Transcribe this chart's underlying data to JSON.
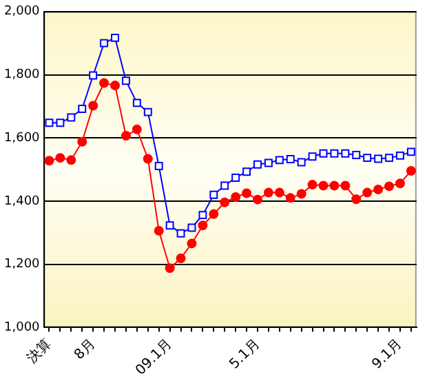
{
  "chart_data": {
    "type": "line",
    "categories": [
      "決算",
      null,
      null,
      null,
      "8月",
      null,
      null,
      null,
      null,
      null,
      null,
      "09.1月",
      null,
      null,
      null,
      null,
      null,
      null,
      null,
      "5.1月",
      null,
      null,
      null,
      null,
      null,
      null,
      null,
      null,
      null,
      null,
      null,
      null,
      "9.1月",
      null
    ],
    "series": [
      {
        "color": "#0000ff",
        "marker": "square",
        "values": [
          1648,
          1648,
          1665,
          1692,
          1798,
          1900,
          1917,
          1781,
          1711,
          1682,
          1511,
          1323,
          1298,
          1316,
          1356,
          1420,
          1449,
          1474,
          1493,
          1516,
          1521,
          1530,
          1533,
          1523,
          1541,
          1551,
          1551,
          1551,
          1546,
          1537,
          1534,
          1537,
          1544,
          1556
        ]
      },
      {
        "color": "#ff0000",
        "marker": "circle",
        "values": [
          1528,
          1537,
          1530,
          1588,
          1702,
          1774,
          1766,
          1607,
          1627,
          1534,
          1306,
          1188,
          1219,
          1266,
          1323,
          1359,
          1396,
          1413,
          1425,
          1405,
          1427,
          1427,
          1410,
          1423,
          1452,
          1449,
          1449,
          1449,
          1406,
          1427,
          1437,
          1447,
          1456,
          1496
        ]
      }
    ],
    "ylim": [
      1000,
      2000
    ],
    "yticks": [
      {
        "value": 1000,
        "label": "1,000"
      },
      {
        "value": 1200,
        "label": "1,200"
      },
      {
        "value": 1400,
        "label": "1,400"
      },
      {
        "value": 1600,
        "label": "1,600"
      },
      {
        "value": 1800,
        "label": "1,800"
      },
      {
        "value": 2000,
        "label": "2,000"
      }
    ],
    "grid": "y",
    "line_style": "solid"
  }
}
